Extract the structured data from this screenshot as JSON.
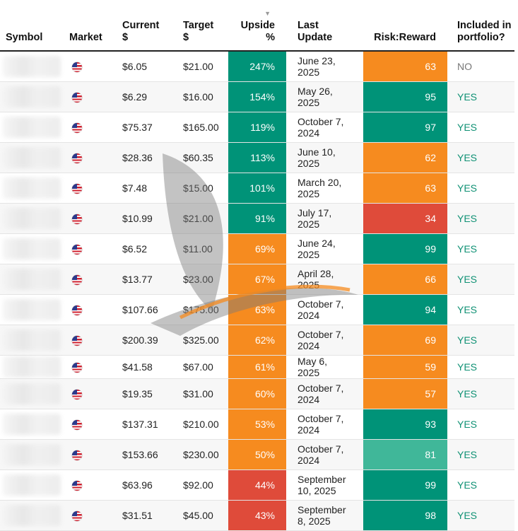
{
  "colors": {
    "green": "#009378",
    "light_green": "#40b799",
    "orange": "#f68b1f",
    "red": "#df4b3a",
    "yes_text": "#0f9174",
    "no_text": "#777777"
  },
  "headers": {
    "symbol": "Symbol",
    "market": "Market",
    "current": "Current $",
    "target": "Target $",
    "upside": "Upside %",
    "last_update": "Last Update",
    "risk_reward": "Risk:Reward",
    "included": "Included in portfolio?",
    "sort_icon": "▼"
  },
  "market_icon": "us-flag-icon",
  "rows": [
    {
      "market": "US",
      "current": "$6.05",
      "target": "$21.00",
      "upside": "247%",
      "upside_color": "green",
      "last_update": "June 23, 2025",
      "rr": "63",
      "rr_color": "orange",
      "included": "NO"
    },
    {
      "market": "US",
      "current": "$6.29",
      "target": "$16.00",
      "upside": "154%",
      "upside_color": "green",
      "last_update": "May 26, 2025",
      "rr": "95",
      "rr_color": "green",
      "included": "YES"
    },
    {
      "market": "US",
      "current": "$75.37",
      "target": "$165.00",
      "upside": "119%",
      "upside_color": "green",
      "last_update": "October 7, 2024",
      "rr": "97",
      "rr_color": "green",
      "included": "YES"
    },
    {
      "market": "US",
      "current": "$28.36",
      "target": "$60.35",
      "upside": "113%",
      "upside_color": "green",
      "last_update": "June 10, 2025",
      "rr": "62",
      "rr_color": "orange",
      "included": "YES"
    },
    {
      "market": "US",
      "current": "$7.48",
      "target": "$15.00",
      "upside": "101%",
      "upside_color": "green",
      "last_update": "March 20, 2025",
      "rr": "63",
      "rr_color": "orange",
      "included": "YES"
    },
    {
      "market": "US",
      "current": "$10.99",
      "target": "$21.00",
      "upside": "91%",
      "upside_color": "green",
      "last_update": "July 17, 2025",
      "rr": "34",
      "rr_color": "red",
      "included": "YES"
    },
    {
      "market": "US",
      "current": "$6.52",
      "target": "$11.00",
      "upside": "69%",
      "upside_color": "orange",
      "last_update": "June 24, 2025",
      "rr": "99",
      "rr_color": "green",
      "included": "YES"
    },
    {
      "market": "US",
      "current": "$13.77",
      "target": "$23.00",
      "upside": "67%",
      "upside_color": "orange",
      "last_update": "April 28, 2025",
      "rr": "66",
      "rr_color": "orange",
      "included": "YES"
    },
    {
      "market": "US",
      "current": "$107.66",
      "target": "$175.00",
      "upside": "63%",
      "upside_color": "orange",
      "last_update": "October 7, 2024",
      "rr": "94",
      "rr_color": "green",
      "included": "YES"
    },
    {
      "market": "US",
      "current": "$200.39",
      "target": "$325.00",
      "upside": "62%",
      "upside_color": "orange",
      "last_update": "October 7, 2024",
      "rr": "69",
      "rr_color": "orange",
      "included": "YES"
    },
    {
      "market": "US",
      "current": "$41.58",
      "target": "$67.00",
      "upside": "61%",
      "upside_color": "orange",
      "last_update": "May 6, 2025",
      "rr": "59",
      "rr_color": "orange",
      "included": "YES"
    },
    {
      "market": "US",
      "current": "$19.35",
      "target": "$31.00",
      "upside": "60%",
      "upside_color": "orange",
      "last_update": "October 7, 2024",
      "rr": "57",
      "rr_color": "orange",
      "included": "YES"
    },
    {
      "market": "US",
      "current": "$137.31",
      "target": "$210.00",
      "upside": "53%",
      "upside_color": "orange",
      "last_update": "October 7, 2024",
      "rr": "93",
      "rr_color": "green",
      "included": "YES"
    },
    {
      "market": "US",
      "current": "$153.66",
      "target": "$230.00",
      "upside": "50%",
      "upside_color": "orange",
      "last_update": "October 7, 2024",
      "rr": "81",
      "rr_color": "light_green",
      "included": "YES"
    },
    {
      "market": "US",
      "current": "$63.96",
      "target": "$92.00",
      "upside": "44%",
      "upside_color": "red",
      "last_update": "September 10, 2025",
      "rr": "99",
      "rr_color": "green",
      "included": "YES"
    },
    {
      "market": "US",
      "current": "$31.51",
      "target": "$45.00",
      "upside": "43%",
      "upside_color": "red",
      "last_update": "September 8, 2025",
      "rr": "98",
      "rr_color": "green",
      "included": "YES"
    }
  ]
}
